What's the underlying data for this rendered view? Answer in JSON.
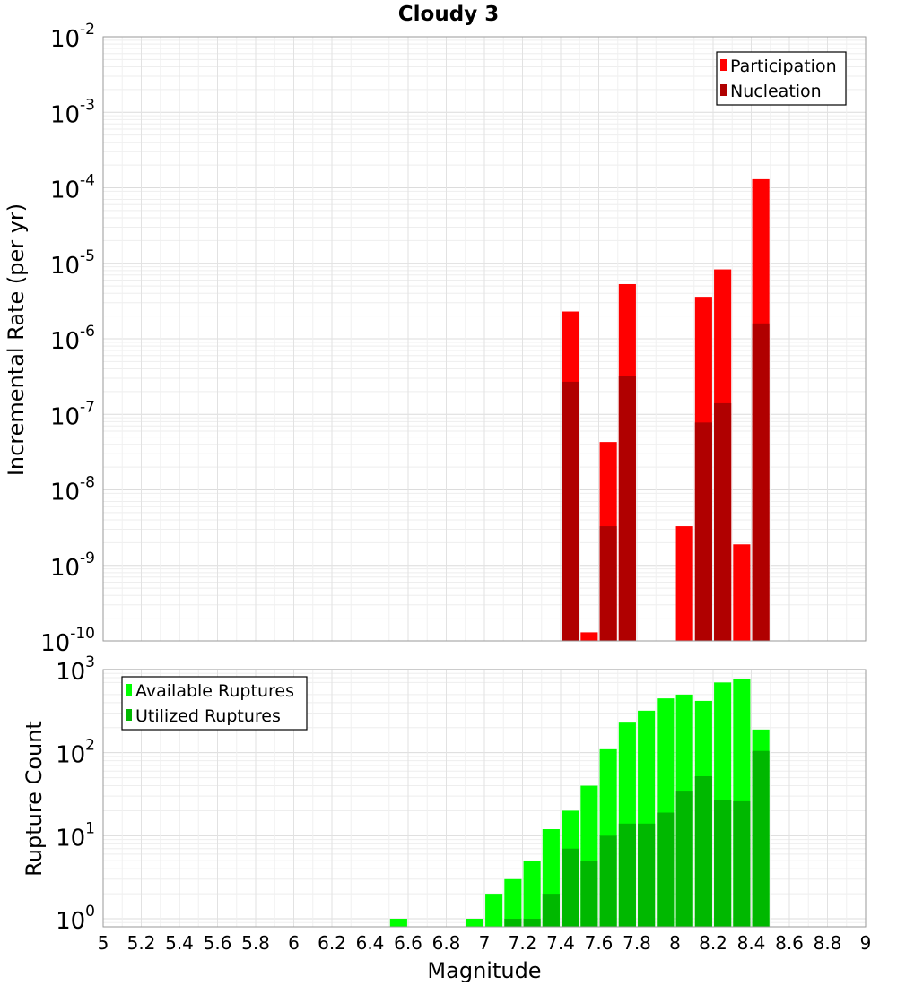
{
  "chart_data": [
    {
      "type": "bar",
      "title": "Cloudy 3",
      "xlabel": "",
      "ylabel": "Incremental Rate (per yr)",
      "yscale": "log",
      "ylim": [
        1e-10,
        0.01
      ],
      "xlim": [
        5,
        9
      ],
      "ytick_exponents": [
        "-10",
        "-9",
        "-8",
        "-7",
        "-6",
        "-5",
        "-4",
        "-3",
        "-2"
      ],
      "legend_position": "top-right",
      "series": [
        {
          "name": "Participation",
          "color": "#ff0000",
          "points": [
            {
              "x": 7.45,
              "y": 2.3e-06
            },
            {
              "x": 7.55,
              "y": 1.3e-10
            },
            {
              "x": 7.65,
              "y": 4.3e-08
            },
            {
              "x": 7.75,
              "y": 5.3e-06
            },
            {
              "x": 8.05,
              "y": 3.3e-09
            },
            {
              "x": 8.15,
              "y": 3.6e-06
            },
            {
              "x": 8.25,
              "y": 8.3e-06
            },
            {
              "x": 8.35,
              "y": 1.9e-09
            },
            {
              "x": 8.45,
              "y": 0.00013
            }
          ]
        },
        {
          "name": "Nucleation",
          "color": "#b00000",
          "points": [
            {
              "x": 7.45,
              "y": 2.7e-07
            },
            {
              "x": 7.65,
              "y": 3.3e-09
            },
            {
              "x": 7.75,
              "y": 3.2e-07
            },
            {
              "x": 8.15,
              "y": 7.8e-08
            },
            {
              "x": 8.25,
              "y": 1.4e-07
            },
            {
              "x": 8.45,
              "y": 1.6e-06
            }
          ]
        }
      ]
    },
    {
      "type": "bar",
      "title": "",
      "xlabel": "Magnitude",
      "ylabel": "Rupture Count",
      "yscale": "log",
      "ylim": [
        0.8,
        1000
      ],
      "xlim": [
        5,
        9
      ],
      "ytick_exponents": [
        "0",
        "1",
        "2",
        "3"
      ],
      "xticks": [
        "5",
        "5.2",
        "5.4",
        "5.6",
        "5.8",
        "6",
        "6.2",
        "6.4",
        "6.6",
        "6.8",
        "7",
        "7.2",
        "7.4",
        "7.6",
        "7.8",
        "8",
        "8.2",
        "8.4",
        "8.6",
        "8.8",
        "9"
      ],
      "legend_position": "top-left",
      "series": [
        {
          "name": "Available Ruptures",
          "color": "#00ff00",
          "points": [
            {
              "x": 6.55,
              "y": 1
            },
            {
              "x": 6.95,
              "y": 1
            },
            {
              "x": 7.05,
              "y": 2
            },
            {
              "x": 7.15,
              "y": 3
            },
            {
              "x": 7.25,
              "y": 5
            },
            {
              "x": 7.35,
              "y": 12
            },
            {
              "x": 7.45,
              "y": 20
            },
            {
              "x": 7.55,
              "y": 40
            },
            {
              "x": 7.65,
              "y": 110
            },
            {
              "x": 7.75,
              "y": 230
            },
            {
              "x": 7.85,
              "y": 320
            },
            {
              "x": 7.95,
              "y": 450
            },
            {
              "x": 8.05,
              "y": 500
            },
            {
              "x": 8.15,
              "y": 420
            },
            {
              "x": 8.25,
              "y": 700
            },
            {
              "x": 8.35,
              "y": 780
            },
            {
              "x": 8.45,
              "y": 190
            }
          ]
        },
        {
          "name": "Utilized Ruptures",
          "color": "#00b800",
          "points": [
            {
              "x": 7.15,
              "y": 1
            },
            {
              "x": 7.25,
              "y": 1
            },
            {
              "x": 7.35,
              "y": 2
            },
            {
              "x": 7.45,
              "y": 7
            },
            {
              "x": 7.55,
              "y": 5
            },
            {
              "x": 7.65,
              "y": 10
            },
            {
              "x": 7.75,
              "y": 14
            },
            {
              "x": 7.85,
              "y": 14
            },
            {
              "x": 7.95,
              "y": 19
            },
            {
              "x": 8.05,
              "y": 34
            },
            {
              "x": 8.15,
              "y": 52
            },
            {
              "x": 8.25,
              "y": 27
            },
            {
              "x": 8.35,
              "y": 26
            },
            {
              "x": 8.45,
              "y": 105
            }
          ]
        }
      ]
    }
  ]
}
